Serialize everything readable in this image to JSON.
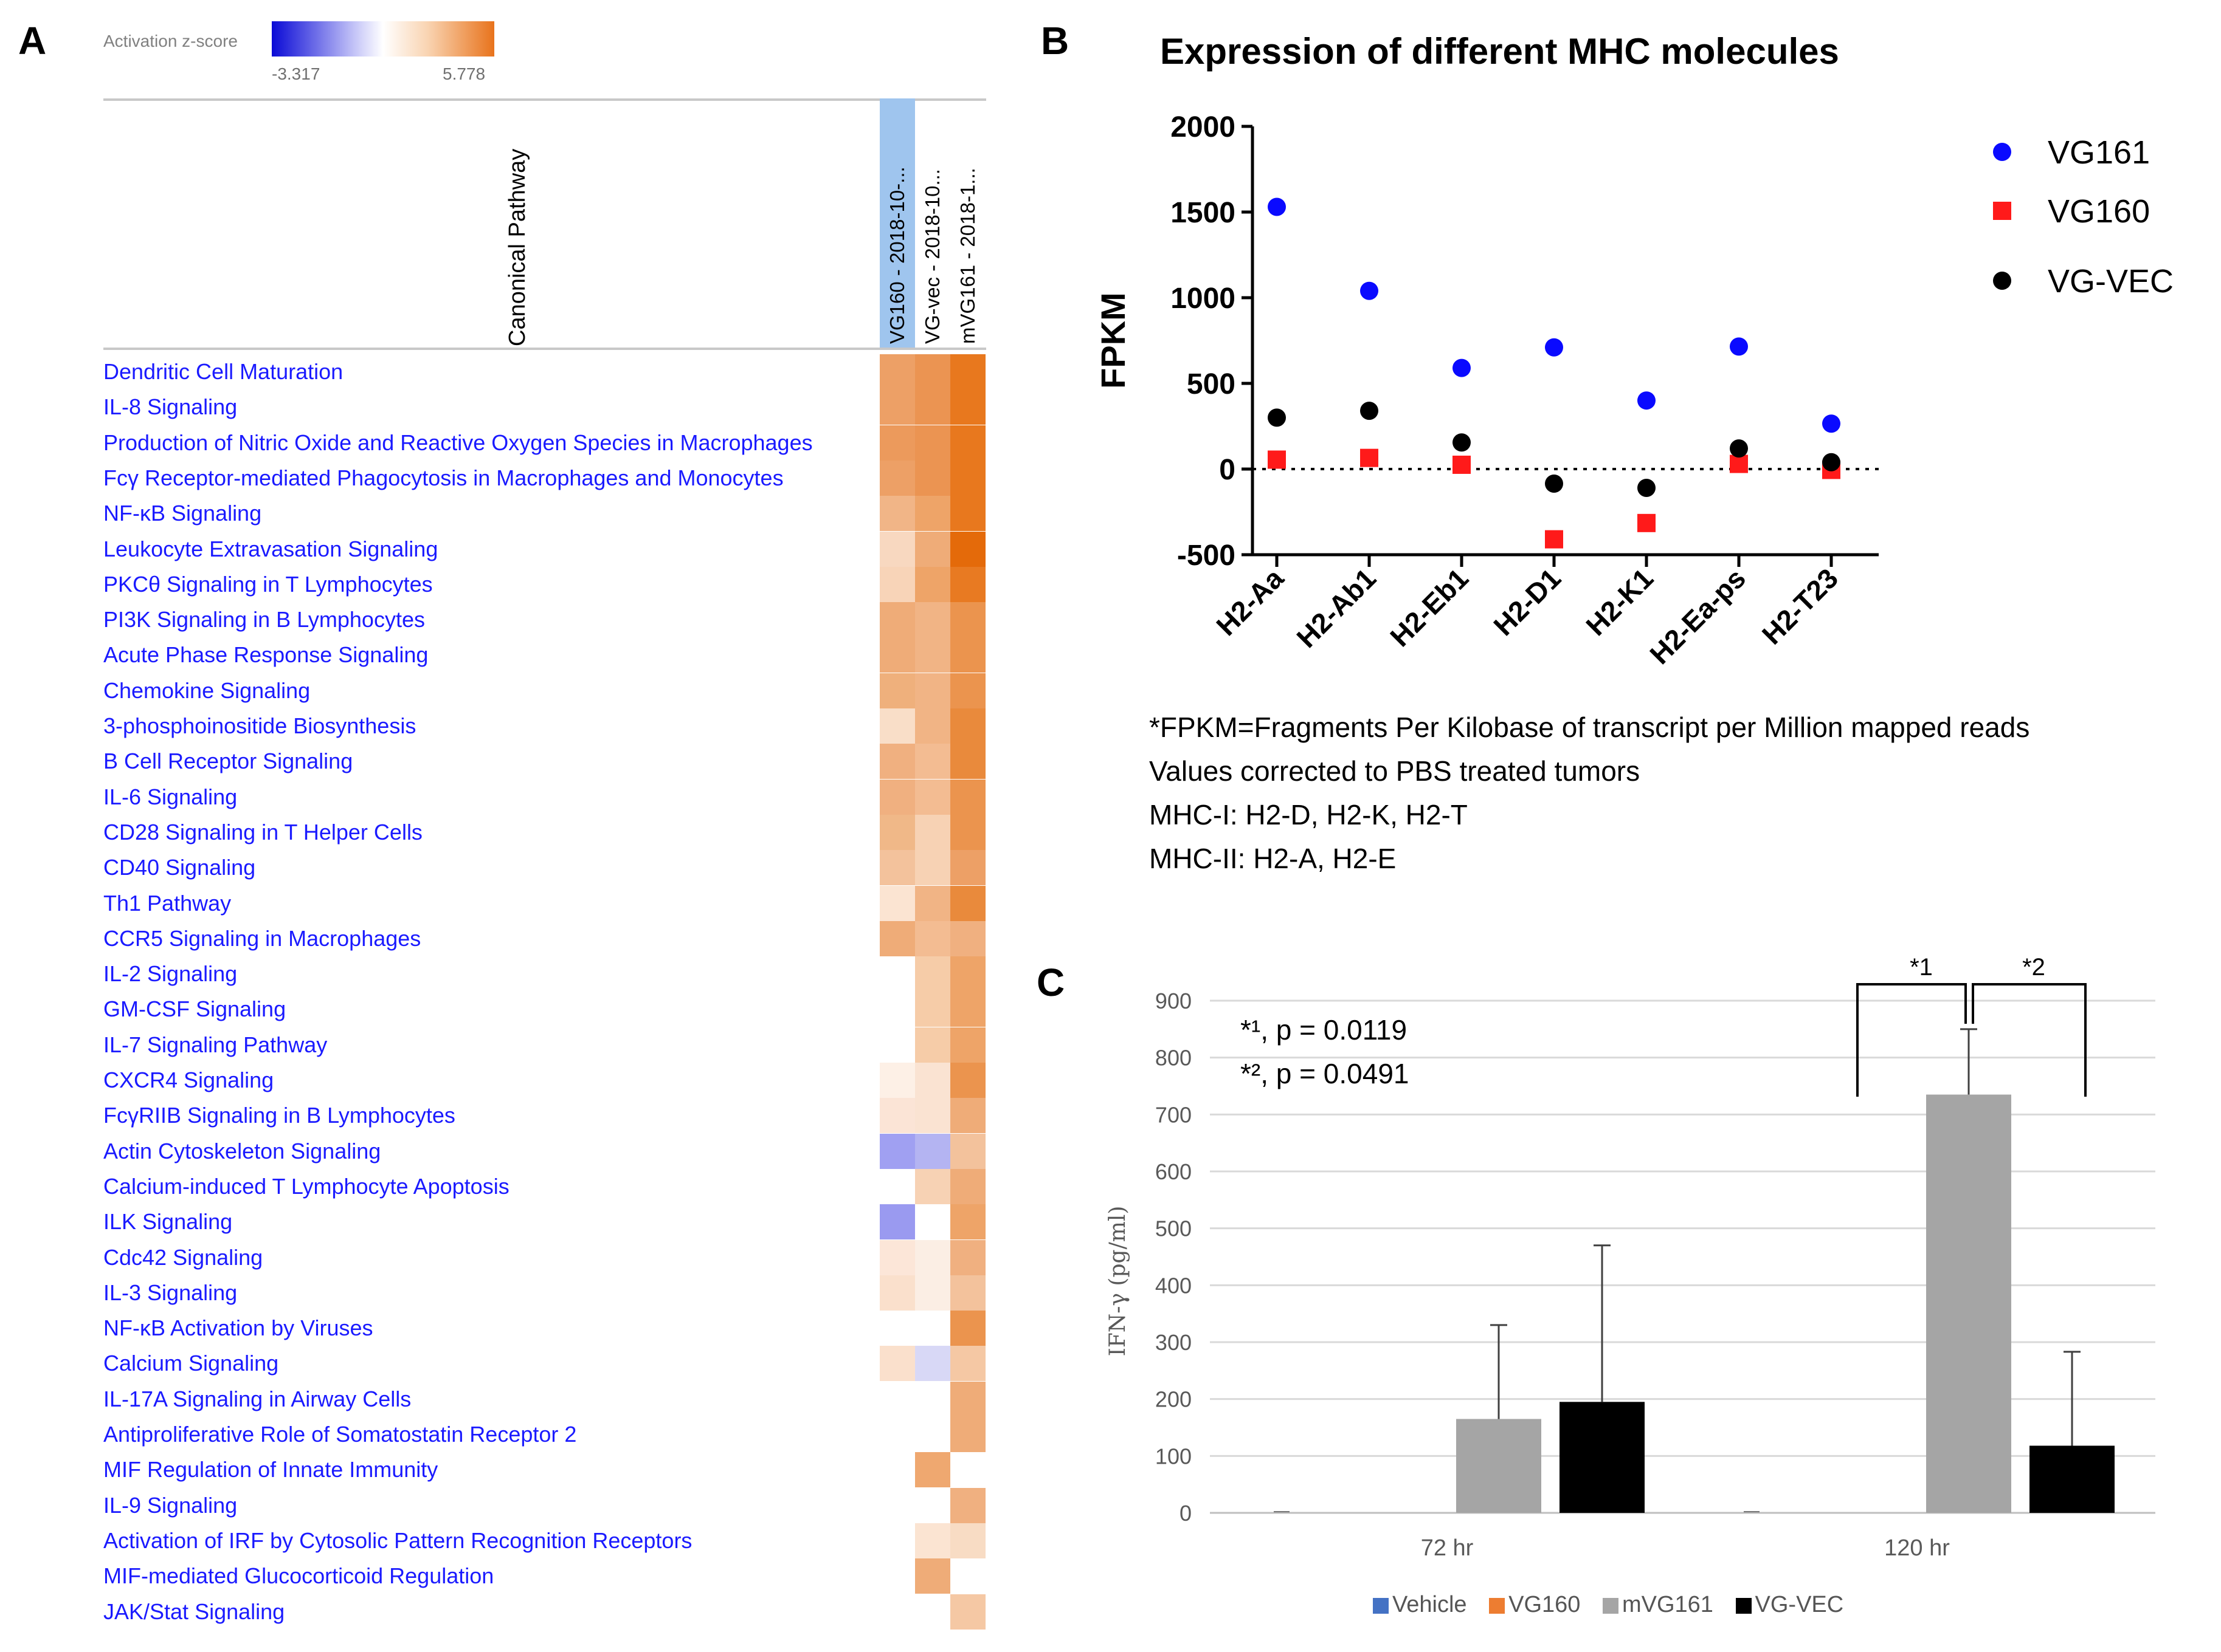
{
  "panels": {
    "a": "A",
    "b": "B",
    "c": "C"
  },
  "heatmap": {
    "legend_title": "Activation z-score",
    "legend_min": "-3.317",
    "legend_max": "5.778",
    "header_label": "Canonical Pathway",
    "columns": [
      "VG160 - 2018-10-...",
      "VG-vec - 2018-10...",
      "mVG161 - 2018-1..."
    ],
    "pathways": [
      "Dendritic Cell Maturation",
      "IL-8 Signaling",
      "Production of Nitric Oxide and Reactive Oxygen Species in Macrophages",
      "Fcγ Receptor-mediated Phagocytosis in Macrophages and Monocytes",
      "NF-κB Signaling",
      "Leukocyte Extravasation Signaling",
      "PKCθ Signaling in T Lymphocytes",
      "PI3K Signaling in B Lymphocytes",
      "Acute Phase Response Signaling",
      "Chemokine Signaling",
      "3-phosphoinositide Biosynthesis",
      "B Cell Receptor Signaling",
      "IL-6 Signaling",
      "CD28 Signaling in T Helper Cells",
      "CD40 Signaling",
      "Th1 Pathway",
      "CCR5 Signaling in Macrophages",
      "IL-2 Signaling",
      "GM-CSF Signaling",
      "IL-7 Signaling Pathway",
      "CXCR4 Signaling",
      "FcγRIIB Signaling in B Lymphocytes",
      "Actin Cytoskeleton Signaling",
      "Calcium-induced T Lymphocyte Apoptosis",
      "ILK Signaling",
      "Cdc42 Signaling",
      "IL-3 Signaling",
      "NF-κB Activation by Viruses",
      "Calcium Signaling",
      "IL-17A Signaling in Airway Cells",
      "Antiproliferative Role of Somatostatin Receptor 2",
      "MIF Regulation of Innate Immunity",
      "IL-9 Signaling",
      "Activation of IRF by Cytosolic Pattern Recognition Receptors",
      "MIF-mediated Glucocorticoid Regulation",
      "JAK/Stat Signaling"
    ],
    "cell_colors": [
      [
        "#eda066",
        "#eb9452",
        "#e8781e"
      ],
      [
        "#eda066",
        "#eb9452",
        "#e8781e"
      ],
      [
        "#ec9a5c",
        "#eb9452",
        "#e8781e"
      ],
      [
        "#eda066",
        "#eb9452",
        "#e8781e"
      ],
      [
        "#f1b587",
        "#eea468",
        "#e8781e"
      ],
      [
        "#f8d8c0",
        "#efac78",
        "#e46a0a"
      ],
      [
        "#f8d4b8",
        "#eea468",
        "#e87a22"
      ],
      [
        "#efac78",
        "#f1b485",
        "#eb944e"
      ],
      [
        "#efac78",
        "#f1b485",
        "#eb944e"
      ],
      [
        "#efb07c",
        "#f1b485",
        "#eb944e"
      ],
      [
        "#f9dec8",
        "#f1b485",
        "#e98a3c"
      ],
      [
        "#f0b080",
        "#f3bc92",
        "#e98a3c"
      ],
      [
        "#f0b080",
        "#f3bc92",
        "#eb944e"
      ],
      [
        "#f0b888",
        "#f7d2b4",
        "#eb944e"
      ],
      [
        "#f3c29c",
        "#f7d2b4",
        "#eda066"
      ],
      [
        "#fbe4d2",
        "#f1b485",
        "#e98a3c"
      ],
      [
        "#efac78",
        "#f3bc92",
        "#f0b080"
      ],
      [
        "",
        "#f6cca8",
        "#eea468"
      ],
      [
        "",
        "#f6cca8",
        "#eea468"
      ],
      [
        "",
        "#f6cca8",
        "#eea468"
      ],
      [
        "#fdf0e6",
        "#fae3d2",
        "#eb944e"
      ],
      [
        "#fbe4d6",
        "#fae3d2",
        "#efac78"
      ],
      [
        "#a0a0f2",
        "#b4b4f2",
        "#f3c29c"
      ],
      [
        "",
        "#f7d2b4",
        "#efac78"
      ],
      [
        "#9a9af0",
        "#ffffff",
        "#eea468"
      ],
      [
        "#fce6d8",
        "#fbeee4",
        "#f0b080"
      ],
      [
        "#fae0cc",
        "#fbeee4",
        "#f3c29c"
      ],
      [
        "",
        "",
        "#eb944e"
      ],
      [
        "#fae0cc",
        "#d8d8f6",
        "#f5c8a4"
      ],
      [
        "",
        "",
        "#efac78"
      ],
      [
        "",
        "",
        "#efac78"
      ],
      [
        "",
        "#efa870",
        ""
      ],
      [
        "",
        "",
        "#f0b080"
      ],
      [
        "",
        "#fbe4d2",
        "#f8dcc4"
      ],
      [
        "",
        "#efac78",
        ""
      ],
      [
        "",
        "",
        "#f5c8a4"
      ]
    ]
  },
  "mhc_note": {
    "line1": "*FPKM=Fragments  Per Kilobase of transcript per Million mapped  reads",
    "line2": "Values corrected to PBS treated tumors",
    "line3": "MHC-I: H2-D, H2-K, H2-T",
    "line4": "MHC-II: H2-A, H2-E"
  },
  "ifn_annotations": {
    "p1": "*¹, p = 0.0119",
    "p2": "*², p = 0.0491",
    "bracket1": "*1",
    "bracket2": "*2"
  },
  "colors": {
    "vg161": "#0a0aff",
    "vg160": "#ff1a1a",
    "vgvec": "#000000",
    "vehicle": "#4472c4",
    "vg160_bar": "#ed7d31",
    "mvg161_bar": "#a5a5a5",
    "vgvec_bar": "#000000"
  },
  "chart_data": [
    {
      "type": "scatter",
      "title": "Expression of different MHC molecules",
      "xlabel": "",
      "ylabel": "FPKM",
      "ylim": [
        -500,
        2000
      ],
      "yticks": [
        -500,
        0,
        500,
        1000,
        1500,
        2000
      ],
      "categories": [
        "H2-Aa",
        "H2-Ab1",
        "H2-Eb1",
        "H2-D1",
        "H2-K1",
        "H2-Ea-ps",
        "H2-T23"
      ],
      "series": [
        {
          "name": "VG161",
          "marker": "circle",
          "values": [
            1530,
            1040,
            590,
            710,
            400,
            715,
            265
          ]
        },
        {
          "name": "VG160",
          "marker": "square",
          "values": [
            55,
            65,
            25,
            -410,
            -315,
            30,
            -5
          ]
        },
        {
          "name": "VG-VEC",
          "marker": "circle",
          "values": [
            300,
            340,
            155,
            -85,
            -110,
            120,
            40
          ]
        }
      ],
      "legend_position": "top-right"
    },
    {
      "type": "bar",
      "title": "",
      "xlabel": "",
      "ylabel": "IFN-γ (pg/ml)",
      "ylim": [
        0,
        900
      ],
      "yticks": [
        0,
        100,
        200,
        300,
        400,
        500,
        600,
        700,
        800,
        900
      ],
      "categories": [
        "72 hr",
        "120 hr"
      ],
      "series": [
        {
          "name": "Vehicle",
          "values": [
            2,
            2
          ],
          "errors": [
            0,
            0
          ]
        },
        {
          "name": "VG160",
          "values": [
            0,
            0
          ],
          "errors": [
            0,
            0
          ]
        },
        {
          "name": "mVG161",
          "values": [
            165,
            735
          ],
          "errors": [
            165,
            115
          ]
        },
        {
          "name": "VG-VEC",
          "values": [
            195,
            118
          ],
          "errors": [
            275,
            165
          ]
        }
      ],
      "grid": true,
      "legend_position": "bottom"
    }
  ]
}
